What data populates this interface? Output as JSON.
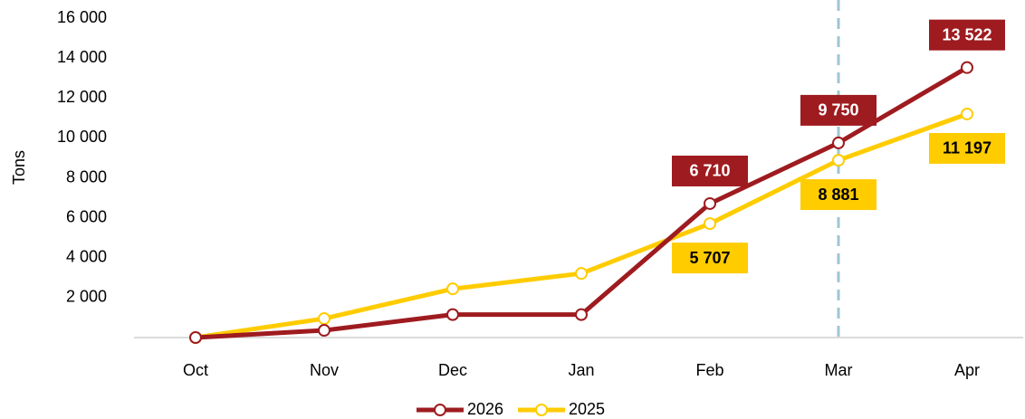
{
  "chart_data": {
    "type": "line",
    "y_label": "Tons",
    "categories": [
      "Oct",
      "Nov",
      "Dec",
      "Jan",
      "Feb",
      "Mar",
      "Apr"
    ],
    "series": [
      {
        "name": "2026",
        "color": "#9e1b1f",
        "label_color": "#ffffff",
        "values": [
          0,
          360,
          1150,
          1150,
          6710,
          9750,
          13522
        ],
        "value_labels": [
          null,
          null,
          null,
          null,
          "6 710",
          "9 750",
          "13 522"
        ]
      },
      {
        "name": "2025",
        "color": "#ffcc00",
        "label_color": "#000000",
        "values": [
          0,
          950,
          2440,
          3210,
          5707,
          8881,
          11197
        ],
        "value_labels": [
          null,
          null,
          null,
          null,
          "5 707",
          "8 881",
          "11 197"
        ]
      }
    ],
    "ylim": [
      0,
      16000
    ],
    "yticks": [
      {
        "value": 2000,
        "label": "2 000"
      },
      {
        "value": 4000,
        "label": "4 000"
      },
      {
        "value": 6000,
        "label": "6 000"
      },
      {
        "value": 8000,
        "label": "8 000"
      },
      {
        "value": 10000,
        "label": "10 000"
      },
      {
        "value": 12000,
        "label": "12 000"
      },
      {
        "value": 14000,
        "label": "14 000"
      },
      {
        "value": 16000,
        "label": "16 000"
      }
    ],
    "grid": false,
    "legend": "bottom"
  }
}
